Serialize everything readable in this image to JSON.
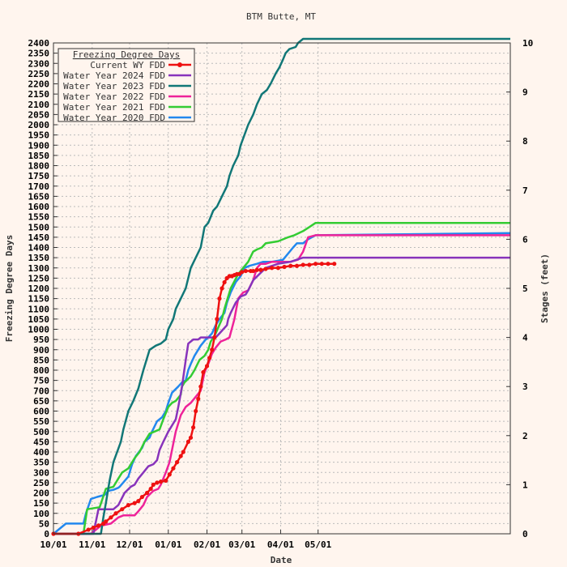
{
  "chart_data": {
    "type": "line",
    "title": "BTM Butte, MT",
    "xlabel": "Date",
    "ylabel": "Freezing Degree Days",
    "y2label": "Stages (feet)",
    "legend_title": "Freezing Degree Days",
    "legend_position": "top-left",
    "grid": true,
    "x_range_days": [
      0,
      366
    ],
    "x_ticks": [
      {
        "day": 0,
        "label": "10/01"
      },
      {
        "day": 31,
        "label": "11/01"
      },
      {
        "day": 61,
        "label": "12/01"
      },
      {
        "day": 92,
        "label": "01/01"
      },
      {
        "day": 123,
        "label": "02/01"
      },
      {
        "day": 151,
        "label": "03/01"
      },
      {
        "day": 182,
        "label": "04/01"
      },
      {
        "day": 212,
        "label": "05/01"
      }
    ],
    "ylim": [
      0,
      2400
    ],
    "y_tick_step": 50,
    "y2lim": [
      0,
      10
    ],
    "y2_tick_step": 1,
    "series": [
      {
        "name": "Water Year 2020 FDD",
        "color": "#2288ee",
        "marker": false,
        "x": [
          0,
          10,
          24,
          26,
          30,
          35,
          41,
          44,
          48,
          52,
          53,
          60,
          63,
          66,
          71,
          73,
          77,
          79,
          83,
          87,
          90,
          92,
          95,
          100,
          103,
          106,
          108,
          110,
          113,
          118,
          122,
          124,
          127,
          130,
          133,
          137,
          139,
          142,
          146,
          150,
          153,
          157,
          163,
          168,
          175,
          180,
          184,
          192,
          195,
          200,
          204,
          210,
          366
        ],
        "y": [
          0,
          50,
          50,
          100,
          170,
          180,
          190,
          210,
          215,
          225,
          230,
          280,
          340,
          380,
          420,
          450,
          470,
          500,
          550,
          570,
          600,
          640,
          690,
          720,
          740,
          750,
          800,
          830,
          870,
          920,
          950,
          960,
          980,
          1020,
          1050,
          1080,
          1130,
          1180,
          1230,
          1260,
          1300,
          1310,
          1320,
          1330,
          1330,
          1335,
          1340,
          1400,
          1420,
          1420,
          1440,
          1460,
          1470
        ]
      },
      {
        "name": "Water Year 2021 FDD",
        "color": "#33cc33",
        "marker": false,
        "x": [
          0,
          24,
          27,
          37,
          42,
          48,
          52,
          55,
          60,
          65,
          69,
          73,
          77,
          81,
          85,
          88,
          92,
          95,
          98,
          102,
          103,
          105,
          110,
          113,
          117,
          121,
          124,
          126,
          130,
          135,
          137,
          142,
          148,
          152,
          156,
          160,
          163,
          167,
          170,
          180,
          188,
          193,
          200,
          205,
          210,
          366
        ],
        "y": [
          0,
          0,
          120,
          130,
          220,
          230,
          270,
          300,
          320,
          370,
          400,
          450,
          490,
          500,
          510,
          560,
          620,
          640,
          650,
          680,
          720,
          740,
          770,
          800,
          850,
          870,
          900,
          940,
          980,
          1050,
          1100,
          1200,
          1270,
          1300,
          1330,
          1380,
          1390,
          1400,
          1420,
          1430,
          1450,
          1460,
          1480,
          1500,
          1520,
          1520
        ]
      },
      {
        "name": "Water Year 2022 FDD",
        "color": "#ee2299",
        "marker": false,
        "x": [
          0,
          30,
          38,
          46,
          52,
          56,
          60,
          65,
          68,
          72,
          75,
          80,
          84,
          86,
          90,
          93,
          96,
          98,
          100,
          102,
          106,
          110,
          114,
          118,
          121,
          124,
          127,
          130,
          134,
          138,
          141,
          145,
          148,
          152,
          156,
          160,
          163,
          166,
          170,
          175,
          180,
          190,
          196,
          200,
          204,
          210,
          366
        ],
        "y": [
          0,
          0,
          40,
          50,
          80,
          90,
          90,
          90,
          110,
          140,
          180,
          210,
          220,
          240,
          300,
          350,
          440,
          500,
          540,
          580,
          620,
          640,
          670,
          700,
          790,
          830,
          880,
          910,
          940,
          950,
          960,
          1050,
          1150,
          1180,
          1190,
          1240,
          1300,
          1320,
          1320,
          1330,
          1330,
          1330,
          1340,
          1380,
          1450,
          1460,
          1460
        ]
      },
      {
        "name": "Water Year 2023 FDD",
        "color": "#117777",
        "marker": false,
        "x": [
          0,
          38,
          40,
          42,
          45,
          48,
          51,
          54,
          56,
          60,
          64,
          68,
          72,
          77,
          82,
          86,
          90,
          92,
          96,
          98,
          102,
          106,
          110,
          114,
          118,
          121,
          124,
          126,
          128,
          131,
          135,
          139,
          141,
          144,
          148,
          150,
          153,
          156,
          160,
          163,
          167,
          171,
          174,
          178,
          181,
          184,
          186,
          189,
          194,
          196,
          198,
          200,
          366
        ],
        "y": [
          0,
          0,
          80,
          150,
          260,
          350,
          400,
          450,
          510,
          600,
          650,
          710,
          800,
          900,
          920,
          930,
          950,
          1000,
          1050,
          1100,
          1150,
          1200,
          1300,
          1350,
          1400,
          1500,
          1520,
          1550,
          1580,
          1600,
          1650,
          1700,
          1750,
          1800,
          1850,
          1900,
          1950,
          2000,
          2050,
          2100,
          2150,
          2170,
          2200,
          2250,
          2280,
          2320,
          2350,
          2370,
          2380,
          2400,
          2410,
          2420,
          2420
        ]
      },
      {
        "name": "Water Year 2024 FDD",
        "color": "#8833bb",
        "marker": false,
        "x": [
          0,
          32,
          36,
          42,
          48,
          52,
          57,
          62,
          65,
          68,
          72,
          76,
          80,
          83,
          85,
          88,
          92,
          94,
          98,
          100,
          103,
          106,
          108,
          112,
          116,
          118,
          122,
          126,
          130,
          133,
          136,
          139,
          140,
          142,
          146,
          150,
          154,
          156,
          160,
          170,
          180,
          190,
          195,
          200,
          210,
          366
        ],
        "y": [
          0,
          0,
          120,
          120,
          120,
          140,
          200,
          230,
          240,
          270,
          300,
          330,
          340,
          360,
          410,
          450,
          500,
          520,
          560,
          620,
          720,
          850,
          930,
          950,
          950,
          960,
          960,
          960,
          960,
          980,
          1000,
          1020,
          1050,
          1080,
          1130,
          1160,
          1170,
          1190,
          1240,
          1300,
          1320,
          1330,
          1340,
          1350,
          1350,
          1350
        ]
      },
      {
        "name": "Current WY FDD",
        "color": "#ee1111",
        "marker": true,
        "x": [
          0,
          20,
          28,
          32,
          36,
          40,
          42,
          46,
          50,
          55,
          60,
          65,
          68,
          71,
          75,
          78,
          80,
          83,
          86,
          90,
          93,
          96,
          99,
          102,
          104,
          108,
          110,
          112,
          114,
          116,
          118,
          120,
          123,
          125,
          127,
          129,
          131,
          133,
          135,
          137,
          139,
          141,
          143,
          145,
          147,
          149,
          151,
          154,
          158,
          160,
          163,
          166,
          170,
          175,
          180,
          185,
          190,
          195,
          200,
          205,
          210,
          215,
          220,
          225
        ],
        "y": [
          0,
          0,
          20,
          30,
          40,
          50,
          60,
          80,
          100,
          120,
          140,
          150,
          160,
          180,
          200,
          220,
          240,
          250,
          255,
          260,
          290,
          320,
          350,
          380,
          400,
          450,
          470,
          520,
          600,
          660,
          720,
          790,
          820,
          860,
          900,
          960,
          1050,
          1150,
          1200,
          1230,
          1250,
          1260,
          1260,
          1265,
          1270,
          1270,
          1280,
          1285,
          1285,
          1285,
          1290,
          1290,
          1295,
          1300,
          1300,
          1305,
          1310,
          1310,
          1315,
          1315,
          1320,
          1320,
          1320,
          1320
        ]
      }
    ],
    "legend_order": [
      "Current WY FDD",
      "Water Year 2024 FDD",
      "Water Year 2023 FDD",
      "Water Year 2022 FDD",
      "Water Year 2021 FDD",
      "Water Year 2020 FDD"
    ]
  }
}
